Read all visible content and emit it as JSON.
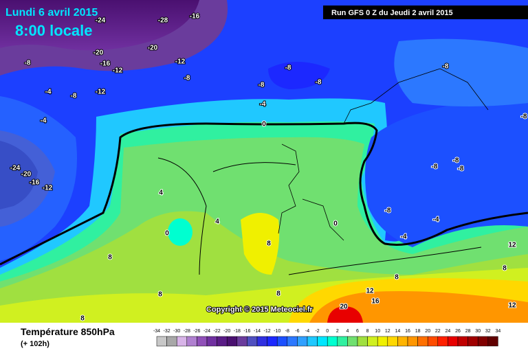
{
  "header": {
    "date": "Lundi 6 avril 2015",
    "time": "8:00 locale",
    "run": "Run GFS 0 Z du Jeudi 2 avril 2015"
  },
  "copyright": "Copyright © 2015 Meteociel.fr",
  "footer": {
    "title": "Température 850hPa",
    "lead": "(+ 102h)"
  },
  "legend": {
    "labels": [
      -34,
      -32,
      -30,
      -28,
      -26,
      -24,
      -22,
      -20,
      -18,
      -16,
      -14,
      -12,
      -10,
      -8,
      -6,
      -4,
      -2,
      0,
      2,
      4,
      6,
      8,
      10,
      12,
      14,
      16,
      18,
      20,
      22,
      24,
      26,
      28,
      30,
      32,
      34
    ],
    "colors": [
      "#c8c8c8",
      "#a8a8a8",
      "#d8b4e8",
      "#b080d0",
      "#9050b8",
      "#7030a0",
      "#5a1c86",
      "#4a1070",
      "#6a3c9c",
      "#5050c0",
      "#3030e0",
      "#1c28ff",
      "#1c50ff",
      "#2c78ff",
      "#30a0ff",
      "#20c8ff",
      "#00e6ff",
      "#00ffd0",
      "#30f0a0",
      "#70e070",
      "#a0e040",
      "#d0f020",
      "#f0f000",
      "#ffd800",
      "#ffb400",
      "#ff9600",
      "#ff7000",
      "#ff4c00",
      "#ff2000",
      "#e80000",
      "#c00000",
      "#a00000",
      "#800000",
      "#600000"
    ]
  },
  "map": {
    "labels": [
      -28,
      -24,
      -16,
      -20,
      -20,
      -16,
      -12,
      -12,
      -8,
      -8,
      -12,
      -8,
      -4,
      -4,
      -8,
      -8,
      -8,
      -4,
      0,
      -8,
      -8,
      -8,
      -8,
      -8,
      -8,
      -4,
      -4,
      0,
      -24,
      -20,
      -16,
      -12,
      4,
      4,
      0,
      8,
      8,
      8,
      8,
      8,
      8,
      8,
      12,
      16,
      20,
      12,
      12
    ]
  }
}
